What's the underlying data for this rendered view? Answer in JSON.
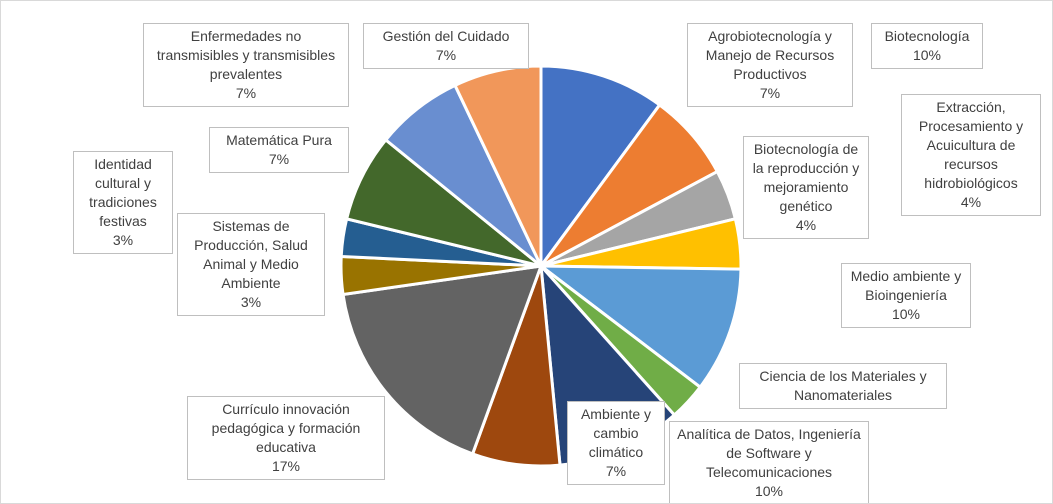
{
  "chart_data": {
    "type": "pie",
    "categories": [
      "Biotecnología",
      "Agrobiotecnología y Manejo de Recursos Productivos",
      "Biotecnología de la reproducción y mejoramiento genético",
      "Extracción, Procesamiento y Acuicultura de recursos hidrobiológicos",
      "Medio ambiente y Bioingeniería",
      "Ciencia de los Materiales y Nanomateriales",
      "Analítica de Datos, Ingeniería de Software y Telecomunicaciones",
      "Ambiente y cambio climático",
      "Currículo innovación pedagógica y formación educativa",
      "Sistemas de Producción, Salud Animal y Medio Ambiente",
      "Identidad cultural y tradiciones festivas",
      "Matemática Pura",
      "Enfermedades no transmisibles y transmisibles prevalentes",
      "Gestión del Cuidado"
    ],
    "values": [
      10,
      7,
      4,
      4,
      10,
      3,
      10,
      7,
      17,
      3,
      3,
      7,
      7,
      7
    ],
    "value_labels": [
      "10%",
      "7%",
      "4%",
      "4%",
      "10%",
      null,
      "10%",
      "7%",
      "17%",
      "3%",
      "3%",
      "7%",
      "7%",
      "7%"
    ],
    "colors": [
      "#4472c4",
      "#ed7d31",
      "#a5a5a5",
      "#ffc000",
      "#5b9bd5",
      "#70ad47",
      "#264478",
      "#9e480e",
      "#636363",
      "#997300",
      "#255e91",
      "#43682b",
      "#698ed0",
      "#f1975a"
    ]
  }
}
